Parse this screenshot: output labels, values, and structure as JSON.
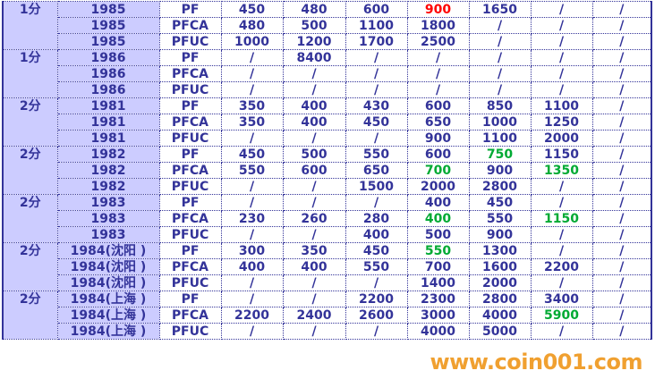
{
  "colors": {
    "text": "#333399",
    "highlight_red": "#ff0000",
    "highlight_green": "#00aa33",
    "label_bg": "#ccccff"
  },
  "groups": [
    {
      "denom": "1分",
      "rows": [
        {
          "year": "1985",
          "type": "PF",
          "values": [
            "450",
            "480",
            "600",
            "900",
            "1650",
            "/",
            "/"
          ],
          "colors": {
            "3": "red"
          }
        },
        {
          "year": "1985",
          "type": "PFCA",
          "values": [
            "480",
            "500",
            "1100",
            "1800",
            "/",
            "/",
            "/"
          ]
        },
        {
          "year": "1985",
          "type": "PFUC",
          "values": [
            "1000",
            "1200",
            "1700",
            "2500",
            "/",
            "/",
            "/"
          ]
        }
      ]
    },
    {
      "denom": "1分",
      "rows": [
        {
          "year": "1986",
          "type": "PF",
          "values": [
            "/",
            "8400",
            "/",
            "/",
            "/",
            "/",
            "/"
          ]
        },
        {
          "year": "1986",
          "type": "PFCA",
          "values": [
            "/",
            "/",
            "/",
            "/",
            "/",
            "/",
            "/"
          ]
        },
        {
          "year": "1986",
          "type": "PFUC",
          "values": [
            "/",
            "/",
            "/",
            "/",
            "/",
            "/",
            "/"
          ]
        }
      ]
    },
    {
      "denom": "2分",
      "rows": [
        {
          "year": "1981",
          "type": "PF",
          "values": [
            "350",
            "400",
            "430",
            "600",
            "850",
            "1100",
            "/"
          ]
        },
        {
          "year": "1981",
          "type": "PFCA",
          "values": [
            "350",
            "400",
            "450",
            "650",
            "1000",
            "1250",
            "/"
          ]
        },
        {
          "year": "1981",
          "type": "PFUC",
          "values": [
            "/",
            "/",
            "/",
            "900",
            "1100",
            "2000",
            "/"
          ]
        }
      ]
    },
    {
      "denom": "2分",
      "rows": [
        {
          "year": "1982",
          "type": "PF",
          "values": [
            "450",
            "500",
            "550",
            "600",
            "750",
            "1150",
            "/"
          ],
          "colors": {
            "4": "green"
          }
        },
        {
          "year": "1982",
          "type": "PFCA",
          "values": [
            "550",
            "600",
            "650",
            "700",
            "900",
            "1350",
            "/"
          ],
          "colors": {
            "3": "green",
            "5": "green"
          }
        },
        {
          "year": "1982",
          "type": "PFUC",
          "values": [
            "/",
            "/",
            "1500",
            "2000",
            "2800",
            "/",
            "/"
          ]
        }
      ]
    },
    {
      "denom": "2分",
      "rows": [
        {
          "year": "1983",
          "type": "PF",
          "values": [
            "/",
            "/",
            "/",
            "400",
            "450",
            "/",
            "/"
          ]
        },
        {
          "year": "1983",
          "type": "PFCA",
          "values": [
            "230",
            "260",
            "280",
            "400",
            "550",
            "1150",
            "/"
          ],
          "colors": {
            "3": "green",
            "5": "green"
          }
        },
        {
          "year": "1983",
          "type": "PFUC",
          "values": [
            "/",
            "/",
            "400",
            "500",
            "900",
            "/",
            "/"
          ]
        }
      ]
    },
    {
      "denom": "2分",
      "rows": [
        {
          "year": "1984(沈阳 )",
          "type": "PF",
          "values": [
            "300",
            "350",
            "450",
            "550",
            "1300",
            "/",
            "/"
          ],
          "colors": {
            "3": "green"
          }
        },
        {
          "year": "1984(沈阳 )",
          "type": "PFCA",
          "values": [
            "400",
            "400",
            "550",
            "700",
            "1600",
            "2200",
            "/"
          ]
        },
        {
          "year": "1984(沈阳 )",
          "type": "PFUC",
          "values": [
            "/",
            "/",
            "/",
            "1400",
            "2000",
            "/",
            "/"
          ]
        }
      ]
    },
    {
      "denom": "2分",
      "rows": [
        {
          "year": "1984(上海 )",
          "type": "PF",
          "values": [
            "/",
            "/",
            "2200",
            "2300",
            "2800",
            "3400",
            "/"
          ]
        },
        {
          "year": "1984(上海 )",
          "type": "PFCA",
          "values": [
            "2200",
            "2400",
            "2600",
            "3000",
            "4000",
            "5900",
            "/"
          ],
          "colors": {
            "5": "green"
          }
        },
        {
          "year": "1984(上海 )",
          "type": "PFUC",
          "values": [
            "/",
            "/",
            "/",
            "4000",
            "5000",
            "/",
            "/"
          ]
        }
      ]
    }
  ],
  "watermark": "www.coin001.com"
}
